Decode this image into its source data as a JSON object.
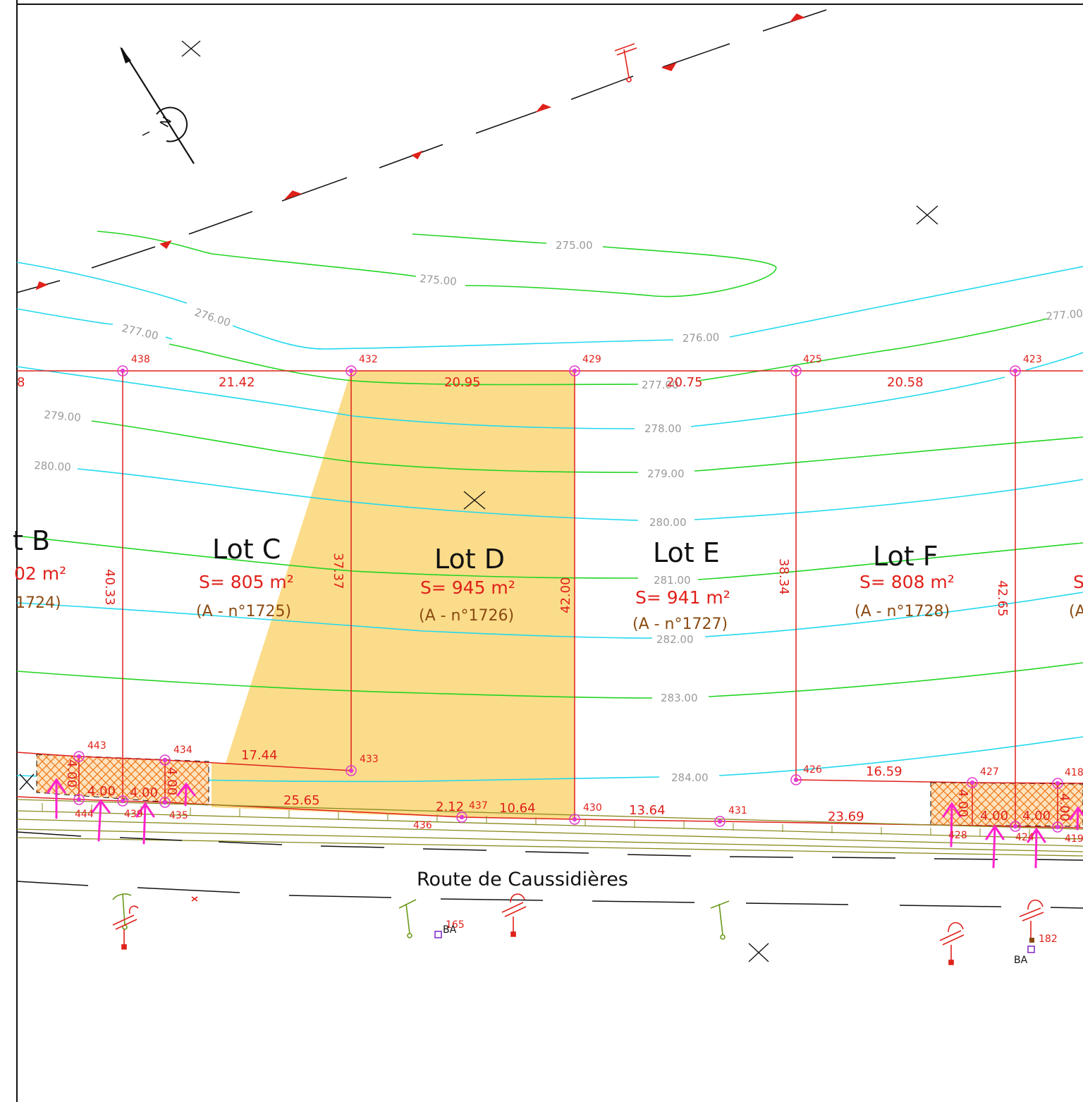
{
  "colors": {
    "parcel_line": "#e0201a",
    "contour_green": "#22d422",
    "contour_cyan": "#22d8ee",
    "highlight_fill": "#fbdc8a",
    "hatch": "#f07a1a",
    "access_arrow": "#ff22cc",
    "road_band": "#8a8a20",
    "network_line": "#111111"
  },
  "icons": {
    "north_arrow": "north-arrow-icon",
    "survey_point": "survey-point-icon",
    "fire_hydrant": "hydrant-icon",
    "street_light": "street-light-icon",
    "benchmark_cross": "cross-marker-icon"
  },
  "north_label": "N",
  "contours": {
    "l275a": "275.00",
    "l275b": "275.00",
    "l276a": "276.00",
    "l276b": "276.00",
    "l277a": "277.00",
    "l277b": "277.00",
    "l277c": "277.00",
    "l278": "278.00",
    "l279a": "279.00",
    "l279b": "279.00",
    "l280a": "280.00",
    "l280b": "280.00",
    "l281": "281.00",
    "l282": "282.00",
    "l283": "283.00",
    "l284": "284.00"
  },
  "points": {
    "p438": "438",
    "p432": "432",
    "p429": "429",
    "p425": "425",
    "p423": "423",
    "p443": "443",
    "p434": "434",
    "p433": "433",
    "p444": "444",
    "p439": "439",
    "p435": "435",
    "p436": "436",
    "p437": "437",
    "p430": "430",
    "p431": "431",
    "p426": "426",
    "p427": "427",
    "p418": "418",
    "p428": "428",
    "p424": "424",
    "p419": "419"
  },
  "dimensions": {
    "top_left_cut": "8",
    "d2142": "21.42",
    "d2095": "20.95",
    "d2075": "20.75",
    "d2058": "20.58",
    "d4033": "40.33",
    "d3737": "37.37",
    "d4200": "42.00",
    "d3834": "38.34",
    "d4265": "42.65",
    "d1744": "17.44",
    "d2565": "25.65",
    "d212": "2.12",
    "d1064": "10.64",
    "d1364": "13.64",
    "d1659": "16.59",
    "d2369": "23.69",
    "w400a": "4.00",
    "w400b": "4.00",
    "w400c": "4.00",
    "w400d": "4.00",
    "w400e": "4.00",
    "w400f": "4.00",
    "w400g": "4.00",
    "w400h": "4.00"
  },
  "lots": {
    "b": {
      "title": "t B",
      "area": "02 m²",
      "ref": "1724)"
    },
    "c": {
      "title": "Lot C",
      "area": "S= 805 m²",
      "ref": "(A - n°1725)"
    },
    "d": {
      "title": "Lot D",
      "area": "S= 945 m²",
      "ref": "(A - n°1726)"
    },
    "e": {
      "title": "Lot E",
      "area": "S= 941 m²",
      "ref": "(A - n°1727)"
    },
    "f": {
      "title": "Lot F",
      "area": "S= 808 m²",
      "ref": "(A - n°1728)"
    },
    "g": {
      "title": "",
      "area": "S",
      "ref": "(A"
    }
  },
  "road": {
    "name": "Route de Caussidières"
  },
  "furniture": {
    "n165": "165",
    "ba1": "BA",
    "n182": "182",
    "ba2": "BA"
  }
}
